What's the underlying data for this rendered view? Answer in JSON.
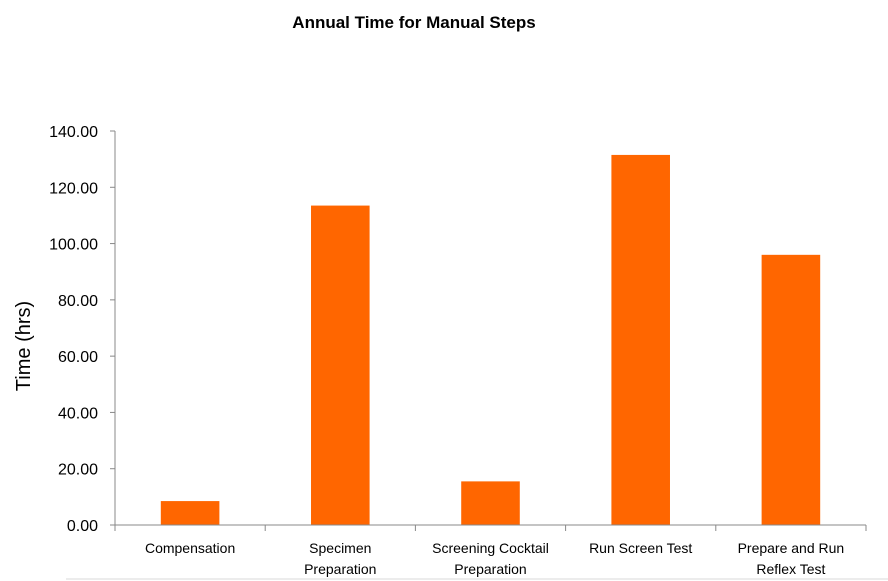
{
  "chart_data": {
    "type": "bar",
    "title": "Annual Time for Manual Steps",
    "xlabel": "",
    "ylabel": "Time (hrs)",
    "ylim": [
      0,
      140
    ],
    "ytick_step": 20,
    "ytick_labels": [
      "0.00",
      "20.00",
      "40.00",
      "60.00",
      "80.00",
      "100.00",
      "120.00",
      "140.00"
    ],
    "grid": false,
    "legend": "none",
    "categories": [
      [
        "Compensation"
      ],
      [
        "Specimen",
        "Preparation"
      ],
      [
        "Screening Cocktail",
        "Preparation"
      ],
      [
        "Run Screen Test"
      ],
      [
        "Prepare and Run",
        "Reflex Test"
      ]
    ],
    "values": [
      8.5,
      113.5,
      15.5,
      131.5,
      96.0
    ],
    "bar_color": "#FF6600"
  }
}
